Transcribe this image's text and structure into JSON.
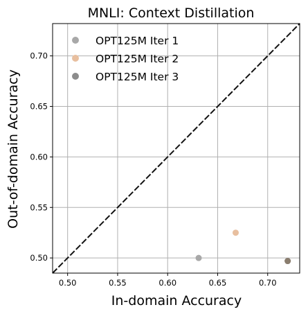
{
  "chart_data": {
    "type": "scatter",
    "title": "MNLI: Context Distillation",
    "xlabel": "In-domain Accuracy",
    "ylabel": "Out-of-domain Accuracy",
    "xlim": [
      0.485,
      0.732
    ],
    "ylim": [
      0.485,
      0.732
    ],
    "xticks": [
      0.5,
      0.55,
      0.6,
      0.65,
      0.7
    ],
    "yticks": [
      0.5,
      0.55,
      0.6,
      0.65,
      0.7
    ],
    "xtick_labels": [
      "0.50",
      "0.55",
      "0.60",
      "0.65",
      "0.70"
    ],
    "ytick_labels": [
      "0.50",
      "0.55",
      "0.60",
      "0.65",
      "0.70"
    ],
    "grid": true,
    "legend_position": "top-left",
    "reference_line": "y = x",
    "series": [
      {
        "name": "OPT125M Iter 1",
        "color": "#a8a8a8",
        "points": [
          {
            "x": 0.631,
            "y": 0.5
          }
        ]
      },
      {
        "name": "OPT125M Iter 2",
        "color": "#e8bf9f",
        "points": [
          {
            "x": 0.668,
            "y": 0.525
          }
        ]
      },
      {
        "name": "OPT125M Iter 3",
        "color": "#8c8c8c",
        "points": [
          {
            "x": 0.72,
            "y": 0.497
          }
        ]
      }
    ],
    "overlay_points": [
      {
        "x": 0.72,
        "y": 0.497,
        "color": "#8a7a68"
      }
    ]
  }
}
